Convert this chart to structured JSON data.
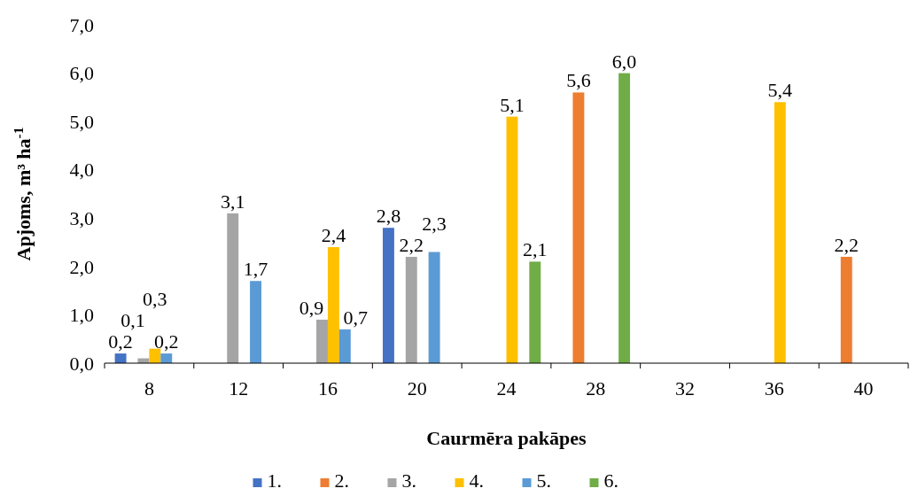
{
  "chart_data": {
    "type": "bar",
    "xlabel": "Caurmēra pakāpes",
    "ylabel": "Apjoms, m³ ha$^{-1}$",
    "categories": [
      "8",
      "12",
      "16",
      "20",
      "24",
      "28",
      "32",
      "36",
      "40"
    ],
    "ylim": [
      0,
      7
    ],
    "yticks": [
      {
        "value": 0,
        "label": "0,0"
      },
      {
        "value": 1,
        "label": "1,0"
      },
      {
        "value": 2,
        "label": "2,0"
      },
      {
        "value": 3,
        "label": "3,0"
      },
      {
        "value": 4,
        "label": "4,0"
      },
      {
        "value": 5,
        "label": "5,0"
      },
      {
        "value": 6,
        "label": "6,0"
      },
      {
        "value": 7,
        "label": "7,0"
      }
    ],
    "grid": false,
    "legend": "bottom",
    "series": [
      {
        "name": "1.",
        "color": "#4472c4",
        "values": [
          0.2,
          null,
          null,
          2.8,
          null,
          null,
          null,
          null,
          null
        ],
        "value_labels": [
          "0,2",
          null,
          null,
          "2,8",
          null,
          null,
          null,
          null,
          null
        ]
      },
      {
        "name": "2.",
        "color": "#ed7d31",
        "values": [
          null,
          null,
          null,
          null,
          null,
          5.6,
          null,
          null,
          2.2
        ],
        "value_labels": [
          null,
          null,
          null,
          null,
          null,
          "5,6",
          null,
          null,
          "2,2"
        ]
      },
      {
        "name": "3.",
        "color": "#a5a5a5",
        "values": [
          0.1,
          3.1,
          0.9,
          2.2,
          null,
          null,
          null,
          null,
          null
        ],
        "value_labels": [
          "0,1",
          "3,1",
          "0,9",
          "2,2",
          null,
          null,
          null,
          null,
          null
        ]
      },
      {
        "name": "4.",
        "color": "#ffc000",
        "values": [
          0.3,
          null,
          2.4,
          null,
          5.1,
          null,
          null,
          5.4,
          null
        ],
        "value_labels": [
          "0,3",
          null,
          "2,4",
          null,
          "5,1",
          null,
          null,
          "5,4",
          null
        ]
      },
      {
        "name": "5.",
        "color": "#5b9bd5",
        "values": [
          0.2,
          1.7,
          0.7,
          2.3,
          null,
          null,
          null,
          null,
          null
        ],
        "value_labels": [
          "0,2",
          "1,7",
          "0,7",
          "2,3",
          null,
          null,
          null,
          null,
          null
        ]
      },
      {
        "name": "6.",
        "color": "#70ad47",
        "values": [
          null,
          null,
          null,
          null,
          2.1,
          6.0,
          null,
          null,
          null
        ],
        "value_labels": [
          null,
          null,
          null,
          null,
          "2,1",
          "6,0",
          null,
          null,
          null
        ]
      }
    ]
  }
}
